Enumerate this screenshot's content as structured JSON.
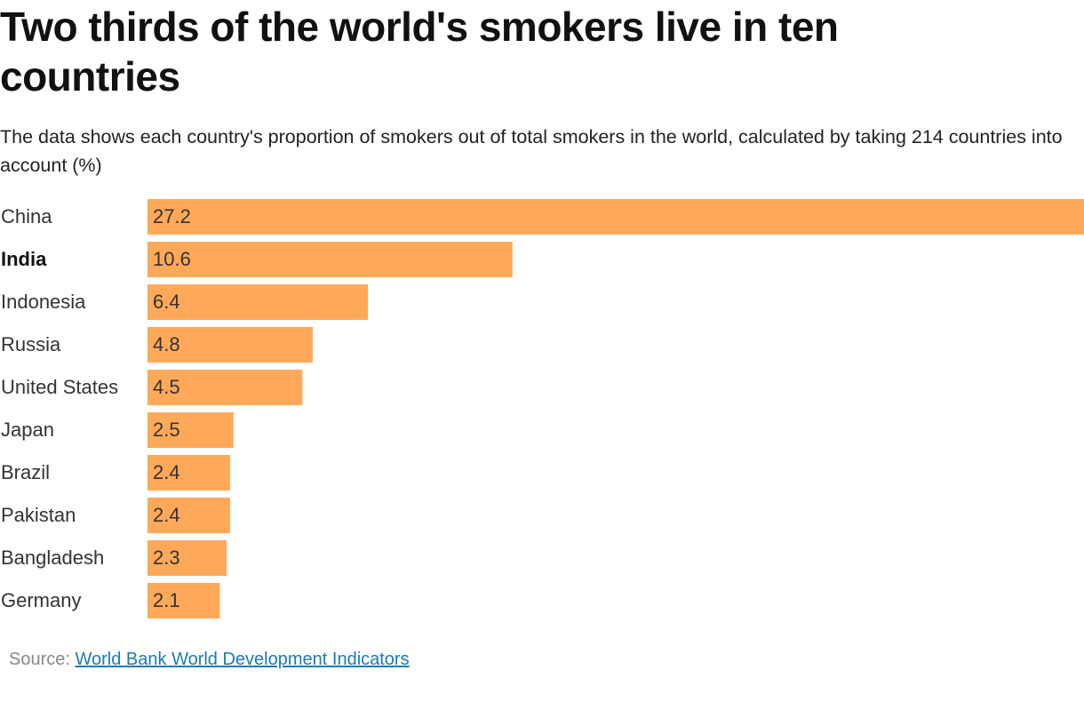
{
  "chart_data": {
    "type": "bar",
    "orientation": "horizontal",
    "title": "Two thirds of the world's smokers live in ten countries",
    "subtitle": "The data shows each country's proportion of smokers out of total smokers in the world, calculated by taking 214 countries into account (%)",
    "categories": [
      "China",
      "India",
      "Indonesia",
      "Russia",
      "United States",
      "Japan",
      "Brazil",
      "Pakistan",
      "Bangladesh",
      "Germany"
    ],
    "values": [
      27.2,
      10.6,
      6.4,
      4.8,
      4.5,
      2.5,
      2.4,
      2.4,
      2.3,
      2.1
    ],
    "color": "#fea95a",
    "highlight": "India",
    "source_label": "Source:",
    "source": "World Bank World Development Indicators"
  }
}
